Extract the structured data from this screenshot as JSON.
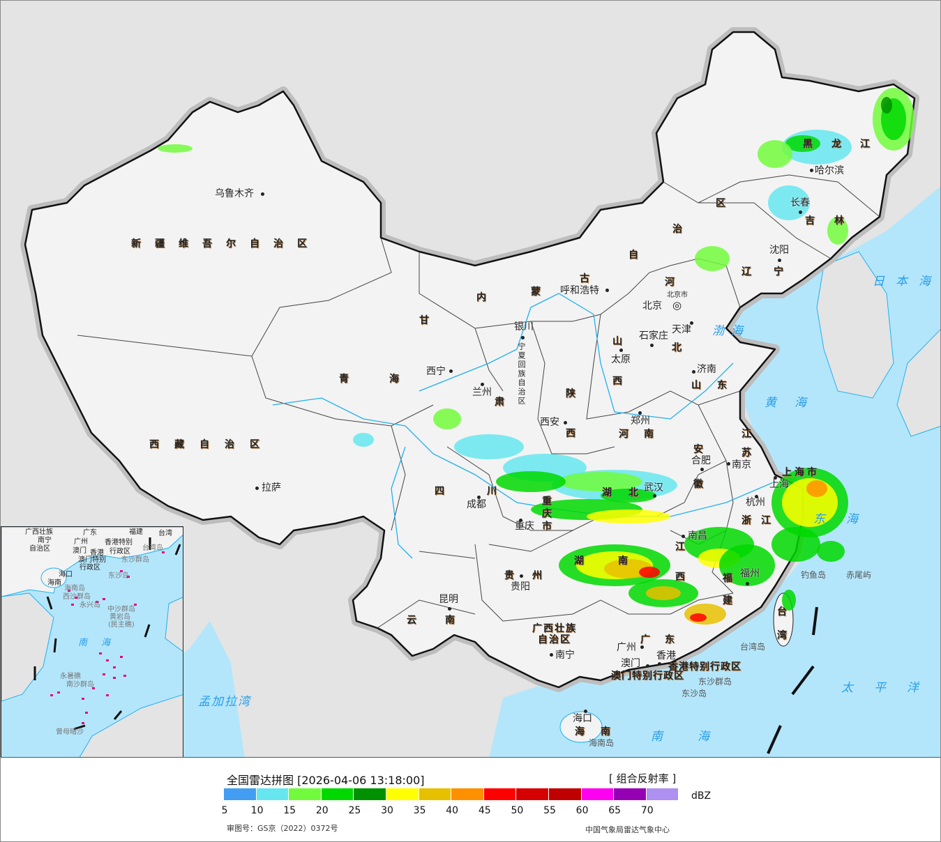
{
  "colors": {
    "sea": "#b4e6fb",
    "land_china": "#f3f3f3",
    "land_foreign": "#e4e4e4",
    "border": "#111111",
    "river": "#1fb0f0"
  },
  "map": {
    "provinces": [
      "新疆维吾尔自治区",
      "西藏自治区",
      "青海",
      "甘肃",
      "内蒙古自治区",
      "黑龙江",
      "吉林",
      "辽宁",
      "河北",
      "山西",
      "山东",
      "陕西",
      "宁夏回族自治区",
      "河南",
      "江苏",
      "安徽",
      "四川",
      "重庆市",
      "湖北",
      "上海市",
      "浙江",
      "江西",
      "湖南",
      "福建",
      "贵州",
      "云南",
      "广西壮族",
      "自治区",
      "广东",
      "台湾",
      "海南",
      "香港特别行政区",
      "澳门特别行政区"
    ],
    "cities": [
      "乌鲁木齐",
      "拉萨",
      "西宁",
      "兰州",
      "银川",
      "呼和浩特",
      "北京",
      "北京市",
      "天津",
      "石家庄",
      "太原",
      "济南",
      "郑州",
      "西安",
      "合肥",
      "南京",
      "上海",
      "杭州",
      "武汉",
      "成都",
      "重庆",
      "南昌",
      "福州",
      "贵阳",
      "昆明",
      "南宁",
      "广州",
      "澳门",
      "香港",
      "哈尔滨",
      "长春",
      "沈阳",
      "海口"
    ],
    "islands": [
      "台湾岛",
      "钓鱼岛",
      "赤尾屿",
      "东沙群岛",
      "东沙岛",
      "海南岛"
    ],
    "seas": [
      "渤海",
      "黄海",
      "东海",
      "日本海",
      "太平洋",
      "南海",
      "孟加拉湾"
    ]
  },
  "inset": {
    "labels": [
      "广西壮族",
      "自治区",
      "南宁",
      "广东",
      "广州",
      "福建",
      "台湾",
      "澳门",
      "香港",
      "香港特别",
      "行政区",
      "台湾岛",
      "澳门特别",
      "行政区",
      "东沙群岛",
      "东沙岛",
      "海口",
      "海南",
      "海南岛",
      "西沙群岛",
      "永兴岛",
      "中沙群岛",
      "黄岩岛",
      "(民主礁)",
      "南海",
      "永暑礁",
      "南沙群岛",
      "曾母暗沙"
    ]
  },
  "legend": {
    "title": "全国雷达拼图 [2026-04-06 13:18:00]",
    "product": "[ 组合反射率 ]",
    "unit": "dBZ",
    "colors": [
      "#439ef3",
      "#66e6ee",
      "#72fb3c",
      "#00d800",
      "#009100",
      "#ffff00",
      "#e7c000",
      "#ff9000",
      "#ff0000",
      "#d60000",
      "#c00000",
      "#ff00f0",
      "#9600b4",
      "#ad90f0"
    ],
    "ticks": [
      "5",
      "10",
      "15",
      "20",
      "25",
      "30",
      "35",
      "40",
      "45",
      "50",
      "55",
      "60",
      "65",
      "70"
    ],
    "approval": "审图号：GS京（2022）0372号",
    "agency": "中国气象局雷达气象中心"
  }
}
